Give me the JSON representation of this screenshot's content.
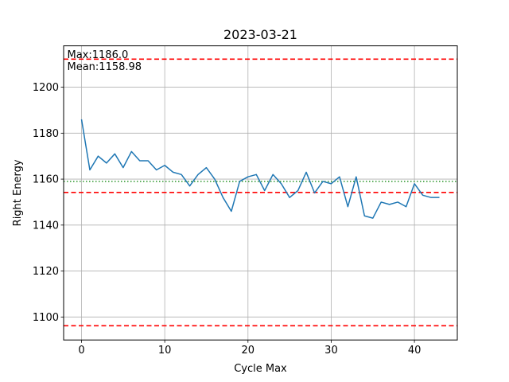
{
  "chart_data": {
    "type": "line",
    "title": "2023-03-21",
    "xlabel": "Cycle Max",
    "ylabel": "Right Energy",
    "xlim": [
      -2.15,
      45.15
    ],
    "ylim": [
      1090,
      1218
    ],
    "x_ticks": [
      0,
      10,
      20,
      30,
      40
    ],
    "y_ticks": [
      1100,
      1120,
      1140,
      1160,
      1180,
      1200
    ],
    "grid": true,
    "series": [
      {
        "color": "#1f77b4",
        "x": [
          0,
          1,
          2,
          3,
          4,
          5,
          6,
          7,
          8,
          9,
          10,
          11,
          12,
          13,
          14,
          15,
          16,
          17,
          18,
          19,
          20,
          21,
          22,
          23,
          24,
          25,
          26,
          27,
          28,
          29,
          30,
          31,
          32,
          33,
          34,
          35,
          36,
          37,
          38,
          39,
          40,
          41,
          42,
          43
        ],
        "values": [
          1186,
          1164,
          1170,
          1167,
          1171,
          1165,
          1172,
          1168,
          1168,
          1164,
          1166,
          1163,
          1162,
          1157,
          1162,
          1165,
          1160,
          1152,
          1146,
          1159,
          1161,
          1162,
          1155,
          1162,
          1158,
          1152,
          1155,
          1163,
          1154,
          1159,
          1158,
          1161,
          1148,
          1161,
          1144,
          1143,
          1150,
          1149,
          1150,
          1148,
          1158,
          1153,
          1152,
          1152
        ]
      }
    ],
    "reference_lines": [
      {
        "value": 1212.2,
        "style": "dashed",
        "color": "#ff0000"
      },
      {
        "value": 1154.2,
        "style": "dashed",
        "color": "#ff0000"
      },
      {
        "value": 1096.2,
        "style": "dashed",
        "color": "#ff0000"
      },
      {
        "value": 1158.98,
        "style": "dotted",
        "color": "#008000"
      }
    ],
    "annotations": [
      {
        "text": "Max:1186.0"
      },
      {
        "text": "Mean:1158.98"
      }
    ]
  }
}
